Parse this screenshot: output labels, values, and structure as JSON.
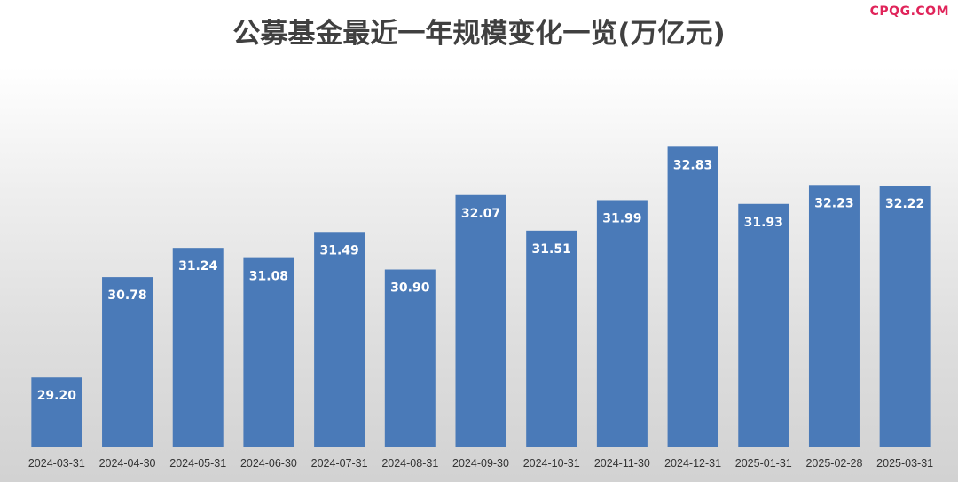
{
  "watermark": "CPQG.COM",
  "chart_data": {
    "type": "bar",
    "title": "公募基金最近一年规模变化一览(万亿元)",
    "categories": [
      "2024-03-31",
      "2024-04-30",
      "2024-05-31",
      "2024-06-30",
      "2024-07-31",
      "2024-08-31",
      "2024-09-30",
      "2024-10-31",
      "2024-11-30",
      "2024-12-31",
      "2025-01-31",
      "2025-02-28",
      "2025-03-31"
    ],
    "values": [
      29.2,
      30.78,
      31.24,
      31.08,
      31.49,
      30.9,
      32.07,
      31.51,
      31.99,
      32.83,
      31.93,
      32.23,
      32.22
    ],
    "value_labels": [
      "29.20",
      "30.78",
      "31.24",
      "31.08",
      "31.49",
      "30.90",
      "32.07",
      "31.51",
      "31.99",
      "32.83",
      "31.93",
      "32.23",
      "32.22"
    ],
    "bar_color": "#4a7ab8",
    "xlabel": "",
    "ylabel": "",
    "ylim": [
      28.1,
      33.1
    ],
    "grid": false,
    "legend": "none"
  }
}
